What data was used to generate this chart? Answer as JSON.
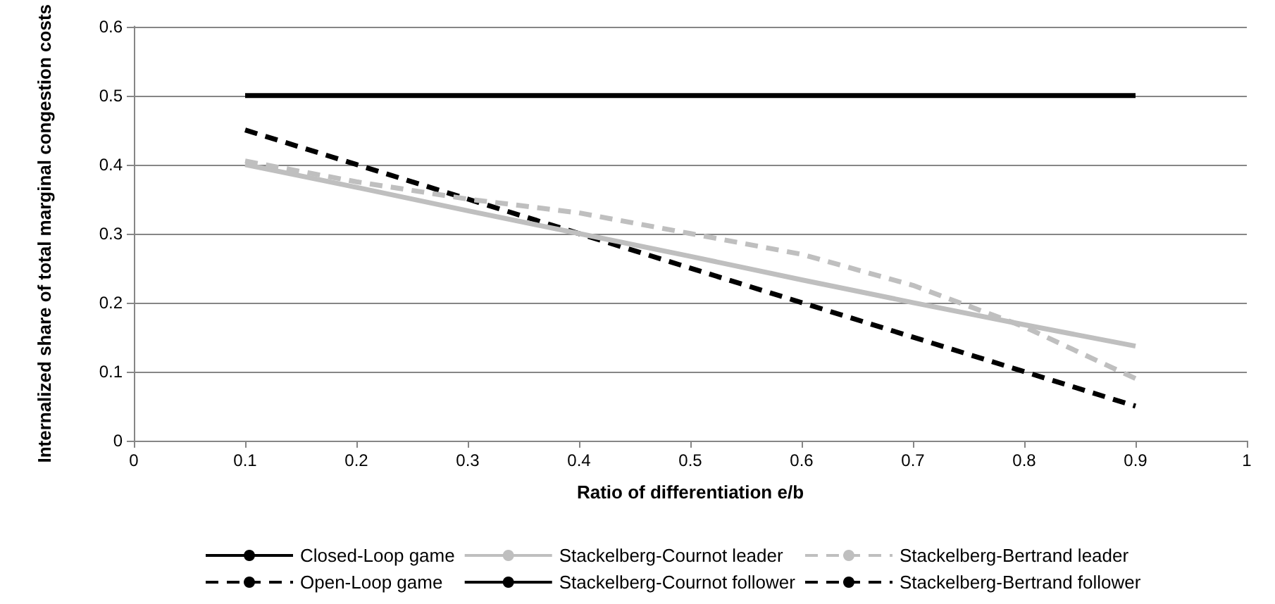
{
  "chart_data": {
    "type": "line",
    "xlabel": "Ratio of differentiation e/b",
    "ylabel": "Internalized share of total marginal congestion costs",
    "x": [
      0.1,
      0.2,
      0.3,
      0.4,
      0.5,
      0.6,
      0.7,
      0.8,
      0.9
    ],
    "xlim": [
      0,
      1
    ],
    "xticks": [
      0,
      0.1,
      0.2,
      0.3,
      0.4,
      0.5,
      0.6,
      0.7,
      0.8,
      0.9,
      1
    ],
    "ylim": [
      0,
      0.6
    ],
    "yticks": [
      0,
      0.1,
      0.2,
      0.3,
      0.4,
      0.5,
      0.6
    ],
    "grid": "y",
    "legend": "bottom",
    "marker": "none",
    "series": [
      {
        "name": "Closed-Loop game",
        "color": "#000000",
        "line_style": "solid",
        "values": [
          0.5,
          0.5,
          0.5,
          0.5,
          0.5,
          0.5,
          0.5,
          0.5,
          0.5
        ]
      },
      {
        "name": "Open-Loop game",
        "color": "#000000",
        "line_style": "dashed",
        "values": [
          0.45,
          0.4,
          0.35,
          0.3,
          0.25,
          0.2,
          0.15,
          0.1,
          0.05
        ]
      },
      {
        "name": "Stackelberg-Cournot leader",
        "color": "#bfbfbf",
        "line_style": "solid",
        "values": [
          0.4,
          0.367,
          0.333,
          0.3,
          0.267,
          0.233,
          0.2,
          0.168,
          0.137
        ]
      },
      {
        "name": "Stackelberg-Cournot follower",
        "color": "#000000",
        "line_style": "solid",
        "values": [
          null,
          null,
          null,
          null,
          null,
          null,
          null,
          null,
          null
        ]
      },
      {
        "name": "Stackelberg-Bertrand leader",
        "color": "#bfbfbf",
        "line_style": "dashed",
        "values": [
          0.405,
          0.375,
          0.35,
          0.33,
          0.3,
          0.27,
          0.225,
          0.165,
          0.09
        ]
      },
      {
        "name": "Stackelberg-Bertrand follower",
        "color": "#000000",
        "line_style": "dashed",
        "values": [
          null,
          null,
          null,
          null,
          null,
          null,
          null,
          null,
          null
        ]
      }
    ]
  }
}
